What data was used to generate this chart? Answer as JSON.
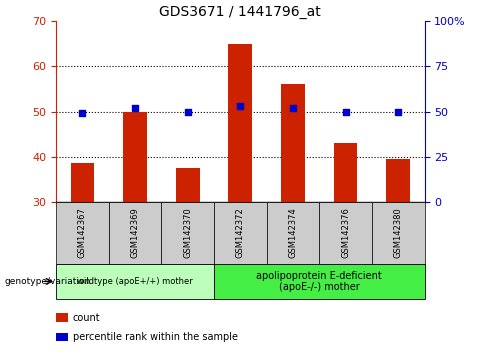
{
  "title": "GDS3671 / 1441796_at",
  "samples": [
    "GSM142367",
    "GSM142369",
    "GSM142370",
    "GSM142372",
    "GSM142374",
    "GSM142376",
    "GSM142380"
  ],
  "bar_values": [
    38.5,
    50.0,
    37.5,
    65.0,
    56.0,
    43.0,
    39.5
  ],
  "bar_bottom": 30,
  "percentile_values": [
    49,
    52,
    50,
    53,
    52,
    50,
    50
  ],
  "ylim_left": [
    30,
    70
  ],
  "ylim_right": [
    0,
    100
  ],
  "yticks_left": [
    30,
    40,
    50,
    60,
    70
  ],
  "yticks_right": [
    0,
    25,
    50,
    75,
    100
  ],
  "ytick_right_labels": [
    "0",
    "25",
    "50",
    "75",
    "100%"
  ],
  "bar_color": "#cc2200",
  "percentile_color": "#0000cc",
  "group1_label": "wildtype (apoE+/+) mother",
  "group2_label": "apolipoprotein E-deficient\n(apoE-/-) mother",
  "group1_indices": [
    0,
    1,
    2
  ],
  "group2_indices": [
    3,
    4,
    5,
    6
  ],
  "group1_color": "#bbffbb",
  "group2_color": "#44ee44",
  "legend_count_label": "count",
  "legend_pct_label": "percentile rank within the sample",
  "genotype_label": "genotype/variation",
  "title_fontsize": 10,
  "tick_fontsize": 8,
  "sample_fontsize": 6,
  "group_fontsize": 7,
  "legend_fontsize": 7
}
